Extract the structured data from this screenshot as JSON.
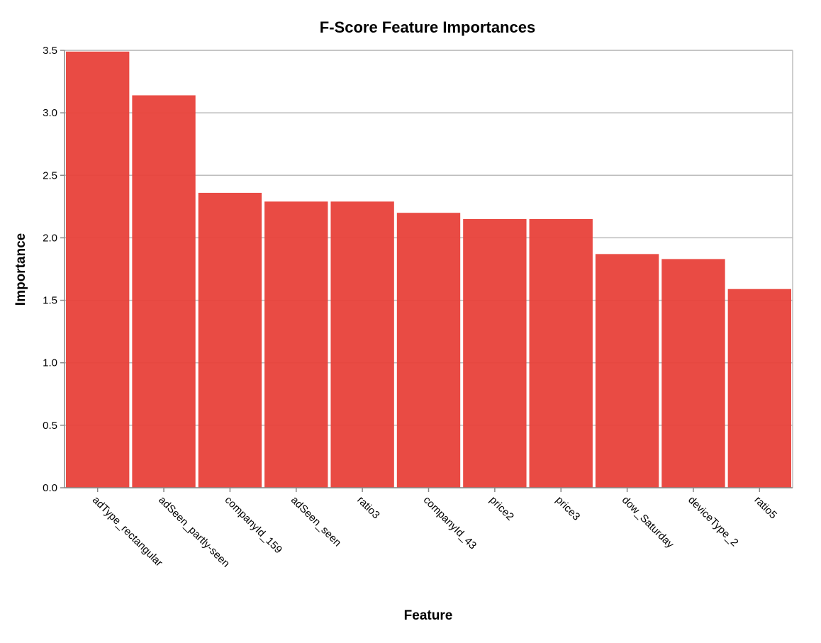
{
  "chart_data": {
    "type": "bar",
    "title": "F-Score Feature Importances",
    "xlabel": "Feature",
    "ylabel": "Importance",
    "categories": [
      "adType_rectangular",
      "adSeen_partly-seen",
      "companyId_159",
      "adSeen_seen",
      "ratio3",
      "companyId_43",
      "price2",
      "price3",
      "dow_Saturday",
      "deviceType_2",
      "ratio5"
    ],
    "values": [
      3.49,
      3.14,
      2.36,
      2.29,
      2.29,
      2.2,
      2.15,
      2.15,
      1.87,
      1.83,
      1.59
    ],
    "ylim": [
      0,
      3.5
    ],
    "yticks": [
      "0.0",
      "0.5",
      "1.0",
      "1.5",
      "2.0",
      "2.5",
      "3.0",
      "3.5"
    ],
    "grid": true,
    "bar_color": "#e8413a"
  }
}
